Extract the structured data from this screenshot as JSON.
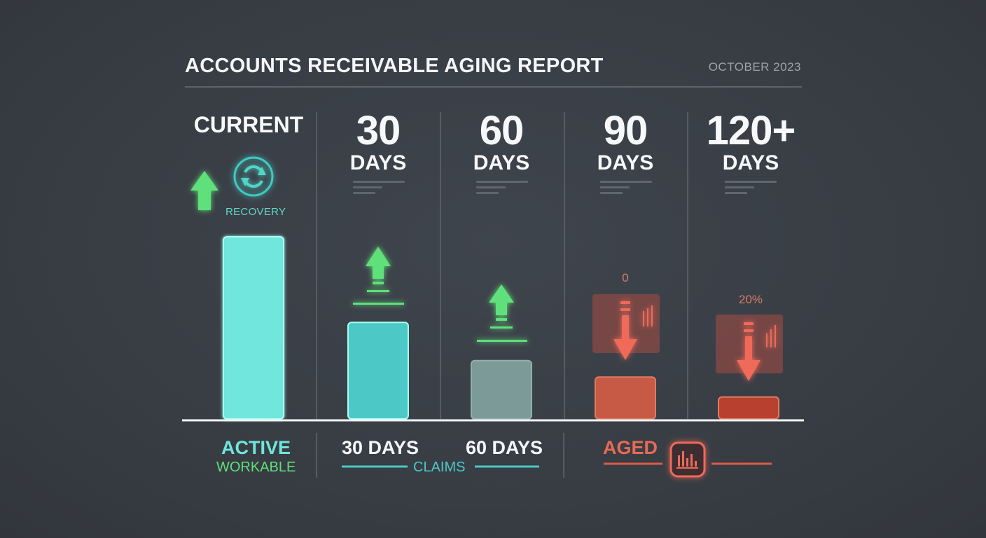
{
  "header": {
    "title": "ACCOUNTS RECEIVABLE AGING REPORT",
    "date": "OCTOBER 2023"
  },
  "columns": [
    {
      "label": "CURRENT"
    },
    {
      "number": "30",
      "unit": "DAYS"
    },
    {
      "number": "60",
      "unit": "DAYS"
    },
    {
      "number": "90",
      "unit": "DAYS"
    },
    {
      "number": "120+",
      "unit": "DAYS"
    }
  ],
  "recovery_label": "RECOVERY",
  "annotations": {
    "days90_value": "0",
    "days120_value": "20%"
  },
  "legend": {
    "active": "ACTIVE",
    "workable": "WORKABLE",
    "days30": "30 DAYS",
    "days60": "60 DAYS",
    "claims": "CLAIMS",
    "aged": "AGED"
  },
  "colors": {
    "current": "#6fe6dc",
    "days30": "#4cc8c6",
    "days60": "#7c9a98",
    "days90": "#c65a44",
    "days120": "#b8402e",
    "up_arrow": "#5fe07a",
    "down_arrow": "#e65a48"
  },
  "chart_data": {
    "type": "bar",
    "categories": [
      "CURRENT",
      "30 DAYS",
      "60 DAYS",
      "90 DAYS",
      "120+ DAYS"
    ],
    "values": [
      100,
      53,
      32,
      23,
      12
    ],
    "trend": [
      "up",
      "up",
      "up",
      "down",
      "down"
    ],
    "ylim": [
      0,
      100
    ]
  }
}
